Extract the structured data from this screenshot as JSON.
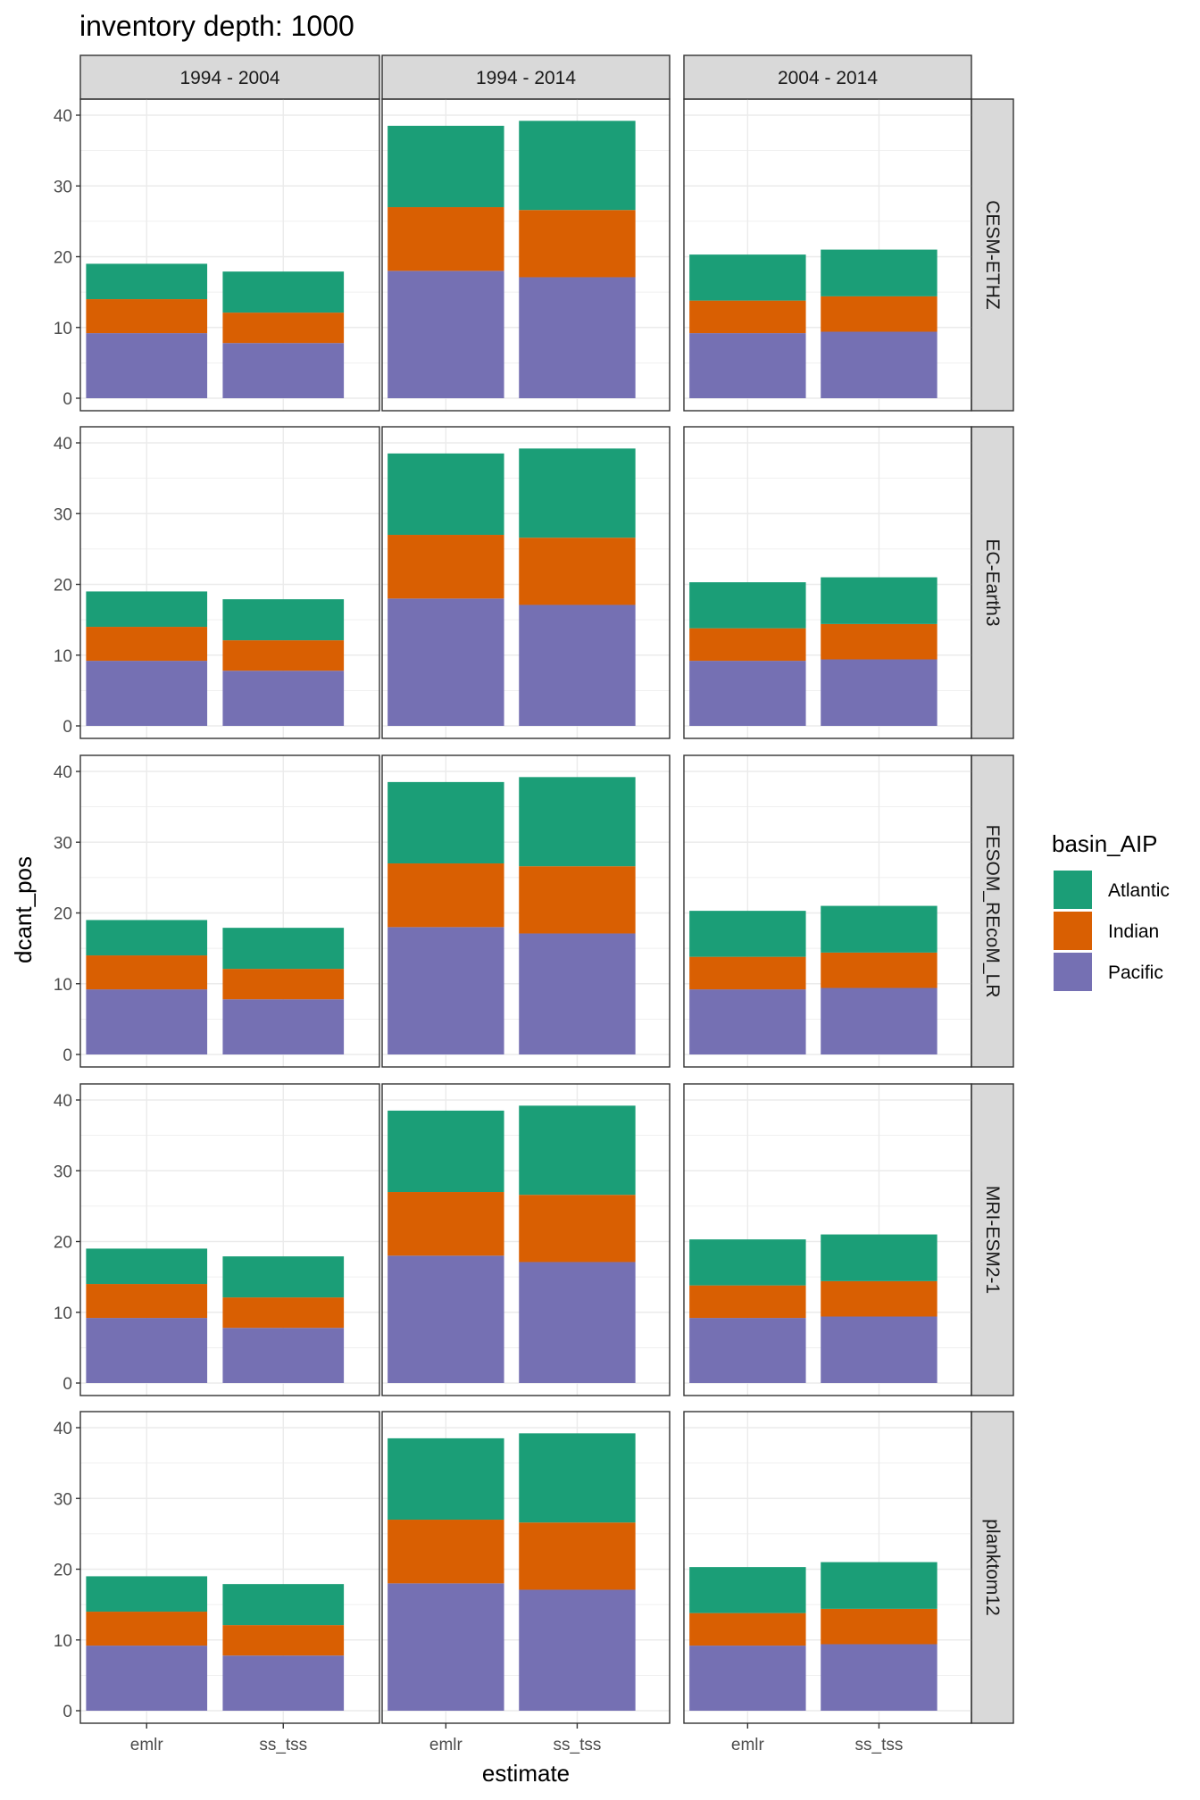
{
  "chart_data": {
    "type": "bar",
    "stacked": true,
    "title": "inventory depth: 1000",
    "xlabel": "estimate",
    "ylabel": "dcant_pos",
    "ylim": [
      0,
      40
    ],
    "y_ticks": [
      0,
      10,
      20,
      30,
      40
    ],
    "categories": [
      "emlr",
      "ss_tss"
    ],
    "facet_columns": [
      "1994 - 2004",
      "1994 - 2014",
      "2004 - 2014"
    ],
    "facet_rows": [
      "CESM-ETHZ",
      "EC-Earth3",
      "FESOM_REcoM_LR",
      "MRI-ESM2-1",
      "planktom12"
    ],
    "grid": true,
    "legend": {
      "title": "basin_AIP",
      "position": "right",
      "entries": [
        "Atlantic",
        "Indian",
        "Pacific"
      ]
    },
    "colors": {
      "Atlantic": "#1b9e77",
      "Indian": "#d95f02",
      "Pacific": "#7570b3"
    },
    "panel_values": {
      "1994 - 2004": {
        "emlr": {
          "Pacific": 9.2,
          "Indian": 4.8,
          "Atlantic": 5.0
        },
        "ss_tss": {
          "Pacific": 7.8,
          "Indian": 4.3,
          "Atlantic": 5.8
        }
      },
      "1994 - 2014": {
        "emlr": {
          "Pacific": 18.0,
          "Indian": 9.0,
          "Atlantic": 11.5
        },
        "ss_tss": {
          "Pacific": 17.1,
          "Indian": 9.5,
          "Atlantic": 12.6
        }
      },
      "2004 - 2014": {
        "emlr": {
          "Pacific": 9.2,
          "Indian": 4.6,
          "Atlantic": 6.5
        },
        "ss_tss": {
          "Pacific": 9.4,
          "Indian": 5.0,
          "Atlantic": 6.6
        }
      }
    }
  }
}
